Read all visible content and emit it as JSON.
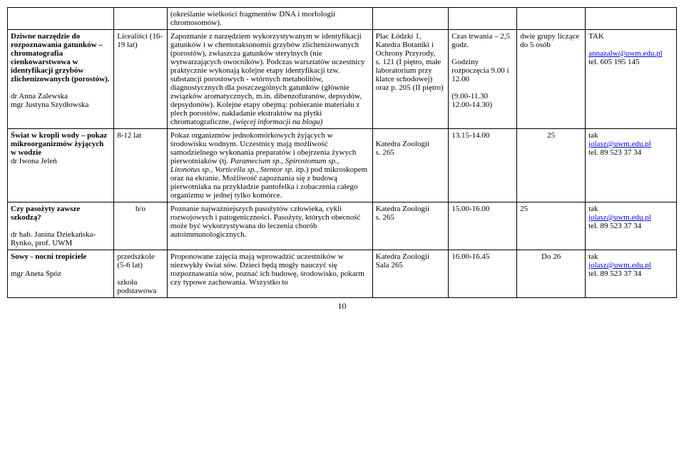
{
  "colors": {
    "link": "#0000ee",
    "text": "#000000",
    "border": "#000000",
    "bg": "#ffffff"
  },
  "pageNumber": "10",
  "rows": {
    "r0": {
      "col2": "(określanie wielkości fragmentów DNA i morfologii chromosomów)."
    },
    "r1": {
      "title": "Dziwne narzędzie do rozpoznawania gatunków – chromatografia cienkowarstwowa w identyfikacji grzybów zlichenizowanych (porostów).",
      "authors": "dr Anna Zalewska\nmgr Justyna Szydłowska",
      "audience": "Licealiści (16-19 lat)",
      "desc_plain1": "Zapoznanie z narzędziem wykorzystywanym w identyfikacji gatunków i w chemotaksonomii grzybów zlichenizowanych (porostów), zwłaszcza gatunków sterylnych (nie wytwarzających owocników). Podczas warsztatów uczestnicy praktycznie wykonają kolejne etapy identyfikacji tzw. substancji porostowych - wtórnych metabolitów, diagnostycznych dla poszczególnych gatunków (głównie związków aromatycznych, m.in. dibenzofuranów, depsydów, depsydonów). Kolejne etapy obejmą: pobieranie materiału z plech porostów, nakładanie ekstraktów na płytki chromatograficzne, ",
      "desc_italic": "(więcej informacji na blogu)",
      "place": "Plac Łódzki 1, Katedra Botaniki i Ochrony Przyrody,\ns. 121 (I piętro, małe laboratorium przy klatce schodowej) oraz p. 205 (II piętro)",
      "time": "Czas trwania – 2,5 godz.\n\nGodziny rozpoczęcia 9.00 i 12.00\n\n(9.00-11.30\n12.00-14.30)",
      "capacity": "dwie grupy liczące do 5 osób",
      "contact_pre": "TAK",
      "contact_email": "annazalw@uwm.edu.pl",
      "contact_tel": "tel. 605 195 145"
    },
    "r2": {
      "title": "Świat w kropli wody – pokaz mikroorganizmów żyjących w wodzie",
      "authors": "dr Iwona Jeleń",
      "audience": "8-12 lat",
      "desc_plain1": "Pokaz organizmów jednokomórkowych żyjących w środowisku wodnym. Uczestnicy mają możliwość samodzielnego wykonania preparatów i obejrzenia żywych pierwotniaków (tj. ",
      "desc_italic": "Paramecium sp., Spirostomum sp., Litonotus sp., Vorticella sp., Stentor sp.",
      "desc_plain2": " itp.) pod mikroskopem oraz na ekranie. Możliwość zapoznania się z budową pierwotniaka na przykładzie pantofelka i zobaczenia całego organizmu w jednej tylko komórce.",
      "place": "\nKatedra Zoologii\ns. 265",
      "time": "13.15-14.00",
      "capacity": "25",
      "contact_pre": "tak",
      "contact_email": "jolasz@uwm.edu.pl",
      "contact_tel": "tel. 89 523 37 34"
    },
    "r3": {
      "title": "Czy pasożyty zawsze szkodzą?",
      "authors": "dr hab. Janina Dziekańska-Rynko, prof. UWM",
      "audience": "b/o",
      "desc": "Poznanie najważniejszych pasożytów człowieka, cykli rozwojowych i patogeniczności. Pasożyty, których obecność może być wykorzystywana do leczenia chorób autoimmunologicznych.",
      "place": "Katedra Zoologii\ns. 265",
      "time": "15.00-16.00",
      "capacity": "25",
      "contact_pre": "tak",
      "contact_email": "jolasz@uwm.edu.pl",
      "contact_tel": "tel. 89 523 37 34"
    },
    "r4": {
      "title": "Sowy - nocni tropiciele",
      "authors": "mgr Aneta Spóz",
      "audience": "przedszkole (5-6 lat)\n\nszkoła podstawowa",
      "desc": "Proponowane zajęcia mają wprowadzić uczestników w niezwykły świat sów. Dzieci będą mogły nauczyć się rozpoznawania sów, poznać ich budowę, środowisko, pokarm czy typowe zachowania. Wszystko to",
      "place": "Katedra Zoologii\nSala 265",
      "time": "16.00-16.45",
      "capacity": "Do 26",
      "contact_pre": "tak",
      "contact_email": "jolasz@uwm.edu.pl",
      "contact_tel": "tel. 89 523 37 34"
    }
  }
}
